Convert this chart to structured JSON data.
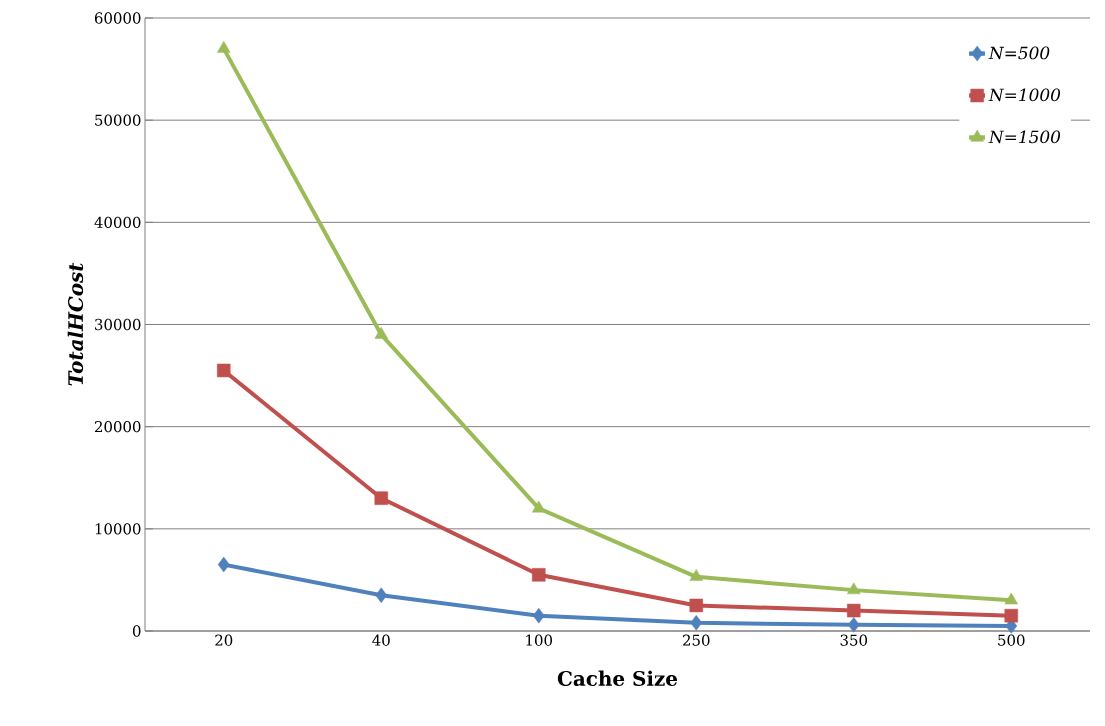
{
  "chart_data": {
    "type": "line",
    "xlabel": "Cache Size",
    "ylabel": "TotalHCost",
    "categories": [
      "20",
      "40",
      "100",
      "250",
      "350",
      "500"
    ],
    "series": [
      {
        "name": "N=500",
        "color": "#4f81bd",
        "marker": "diamond",
        "values": [
          6500,
          3500,
          1500,
          800,
          600,
          500
        ]
      },
      {
        "name": "N=1000",
        "color": "#c0504d",
        "marker": "square",
        "values": [
          25500,
          13000,
          5500,
          2500,
          2000,
          1500
        ]
      },
      {
        "name": "N=1500",
        "color": "#9bbb59",
        "marker": "triangle",
        "values": [
          57000,
          29000,
          12000,
          5300,
          4000,
          3000
        ]
      }
    ],
    "ylim": [
      0,
      60000
    ],
    "yticks": [
      0,
      10000,
      20000,
      30000,
      40000,
      50000,
      60000
    ],
    "grid": "y",
    "legend": "top right",
    "line_style": "solid"
  }
}
